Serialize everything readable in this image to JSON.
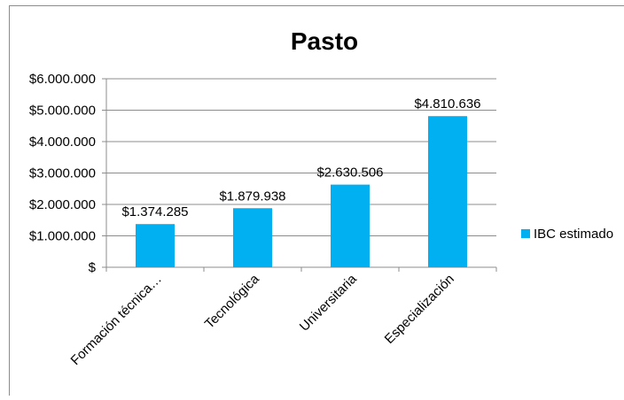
{
  "chart_data": {
    "type": "bar",
    "title": "Pasto",
    "categories": [
      "Formación técnica…",
      "Tecnológica",
      "Universitaria",
      "Especialización"
    ],
    "series": [
      {
        "name": "IBC estimado",
        "values": [
          1374285,
          1879938,
          2630506,
          4810636
        ],
        "labels": [
          "$1.374.285",
          "$1.879.938",
          "$2.630.506",
          "$4.810.636"
        ],
        "color": "#00b0f0"
      }
    ],
    "ylim": [
      0,
      6000000
    ],
    "yticks": [
      0,
      1000000,
      2000000,
      3000000,
      4000000,
      5000000,
      6000000
    ],
    "ytick_labels": [
      "$",
      "$1.000.000",
      "$2.000.000",
      "$3.000.000",
      "$4.000.000",
      "$5.000.000",
      "$6.000.000"
    ],
    "grid": true,
    "legend": "right"
  }
}
